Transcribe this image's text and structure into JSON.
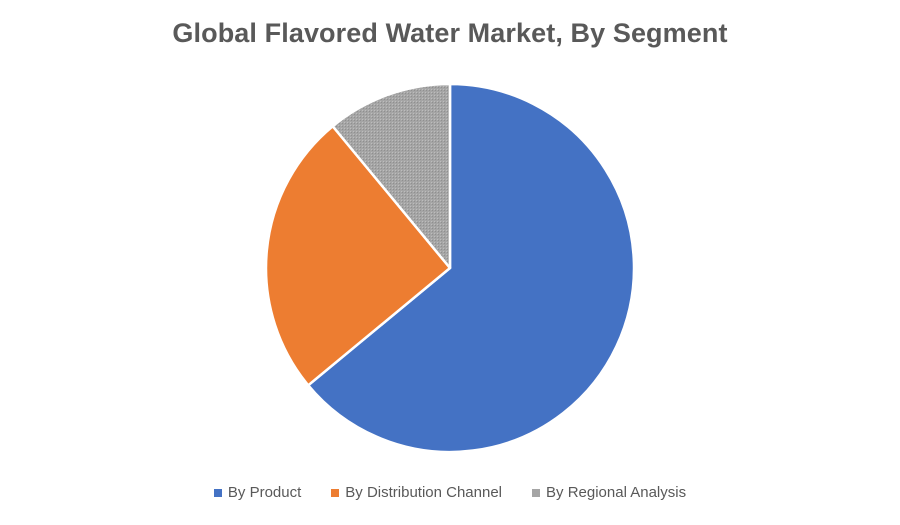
{
  "chart_data": {
    "type": "pie",
    "title": "Global Flavored Water Market, By Segment",
    "categories": [
      "By Product",
      "By Distribution Channel",
      "By Regional Analysis"
    ],
    "values": [
      64,
      25,
      11
    ],
    "colors": [
      "#4472C4",
      "#ED7D31",
      "#A5A5A5"
    ],
    "legend_position": "bottom"
  }
}
